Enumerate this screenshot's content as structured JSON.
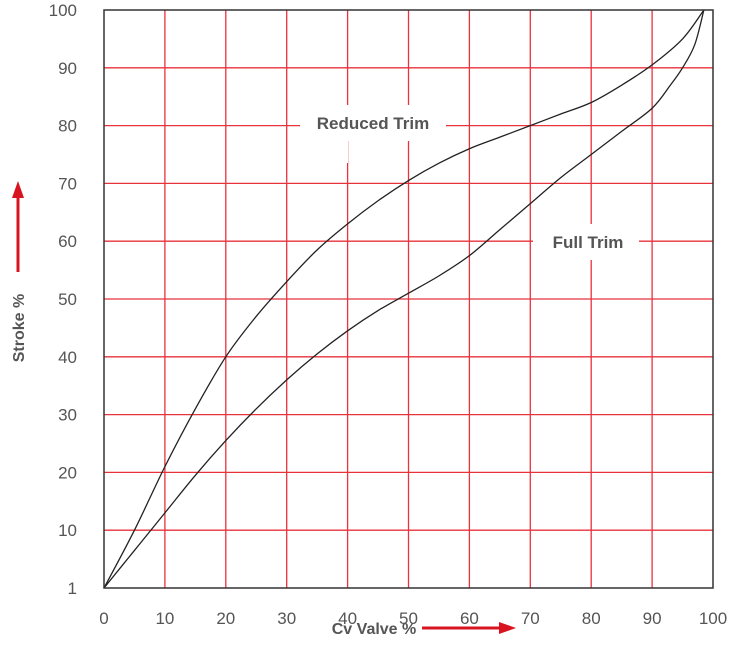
{
  "chart_data": {
    "type": "line",
    "xlabel": "Cv Valve %",
    "ylabel": "Stroke %",
    "xlim": [
      0,
      100
    ],
    "ylim": [
      0,
      100
    ],
    "x_ticks": [
      "0",
      "10",
      "20",
      "30",
      "40",
      "50",
      "60",
      "70",
      "80",
      "90",
      "100"
    ],
    "y_ticks": [
      "1",
      "10",
      "20",
      "30",
      "40",
      "50",
      "60",
      "70",
      "80",
      "90",
      "100"
    ],
    "grid": true,
    "grid_color": "#e8323c",
    "line_color": "#222222",
    "arrow_color": "#d7141f",
    "annotations": [
      "Reduced Trim",
      "Full Trim"
    ],
    "series": [
      {
        "label": "Reduced Trim",
        "x": [
          0,
          5,
          10,
          15,
          20,
          25,
          30,
          35,
          40,
          45,
          50,
          55,
          60,
          65,
          70,
          75,
          80,
          85,
          90,
          95,
          98.5
        ],
        "y": [
          0,
          10,
          21,
          31,
          40,
          47,
          53,
          58.5,
          63,
          67,
          70.5,
          73.5,
          76,
          78,
          80,
          82,
          84,
          87,
          90.5,
          95,
          100
        ]
      },
      {
        "label": "Full Trim",
        "x": [
          0,
          5,
          10,
          15,
          20,
          25,
          30,
          35,
          40,
          45,
          50,
          55,
          60,
          65,
          70,
          75,
          80,
          85,
          90,
          93,
          95,
          97,
          98.5
        ],
        "y": [
          0,
          6.5,
          13,
          19.5,
          25.5,
          31,
          36,
          40.5,
          44.5,
          48,
          51,
          54,
          57.5,
          62,
          66.5,
          71,
          75,
          79,
          83,
          87,
          90,
          94,
          100
        ]
      }
    ]
  }
}
